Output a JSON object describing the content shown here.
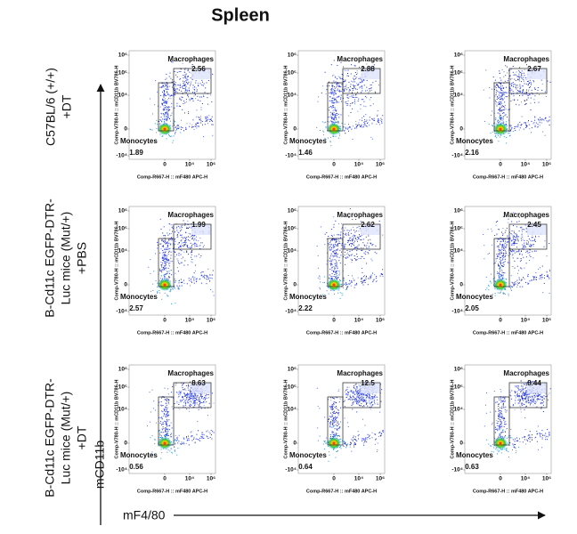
{
  "title": "Spleen",
  "row_labels": [
    [
      "C57BL/6 (+/+)",
      "+DT"
    ],
    [
      "B-Cd11c EGFP-DTR-",
      "Luc mice (Mut/+)",
      "+PBS"
    ],
    [
      "B-Cd11c EGFP-DTR-",
      "Luc mice (Mut/+)",
      "+DT"
    ]
  ],
  "y_arrow_label": "mCD11b",
  "x_arrow_label": "mF4/80",
  "panel_y_label": "Comp-V780-H :: mCD11b BV786-H",
  "panel_x_label": "Comp-R667-H :: mF480 APC-H",
  "macrophages_label": "Macrophages",
  "monocytes_label": "Monocytes",
  "yticks": [
    "10⁶",
    "10⁵",
    "10⁴",
    "0",
    "-10⁴"
  ],
  "xticks": [
    "0",
    "10⁴",
    "10⁶"
  ],
  "panels": [
    [
      {
        "macrophages": 2.56,
        "monocytes": 1.89
      },
      {
        "macrophages": 2.88,
        "monocytes": 1.46
      },
      {
        "macrophages": 2.67,
        "monocytes": 2.16
      }
    ],
    [
      {
        "macrophages": 1.99,
        "monocytes": 2.57
      },
      {
        "macrophages": 2.62,
        "monocytes": 2.22
      },
      {
        "macrophages": 2.45,
        "monocytes": 2.05
      }
    ],
    [
      {
        "macrophages": 8.63,
        "monocytes": 0.56
      },
      {
        "macrophages": 12.5,
        "monocytes": 0.64
      },
      {
        "macrophages": 8.44,
        "monocytes": 0.63
      }
    ]
  ]
}
